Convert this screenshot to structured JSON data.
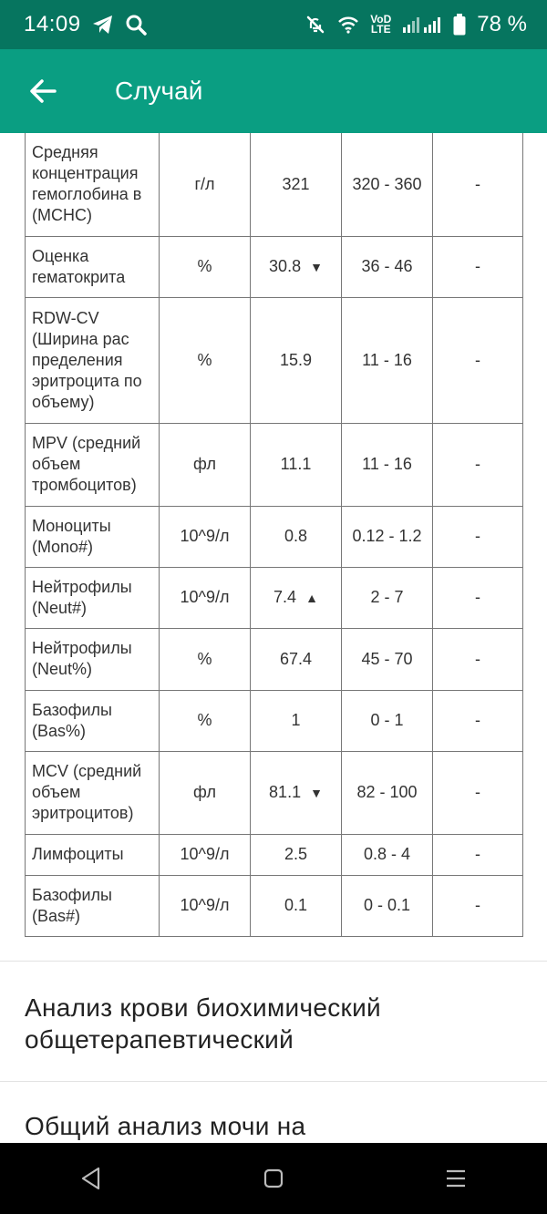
{
  "status_bar": {
    "time": "14:09",
    "network_top": "VoD",
    "network_bottom": "LTE",
    "battery": "78 %"
  },
  "app_bar": {
    "title": "Случай"
  },
  "table": {
    "rows": [
      {
        "name": "Средняя концентрация гемоглобина в (MCHC)",
        "unit": "г/л",
        "value": "321",
        "ref": "320 - 360",
        "note": "-",
        "flag": ""
      },
      {
        "name": "Оценка гематокрита",
        "unit": "%",
        "value": "30.8",
        "ref": "36 - 46",
        "note": "-",
        "flag": "▼"
      },
      {
        "name": "RDW-CV (Ширина рас пределения эритроцита по объему)",
        "unit": "%",
        "value": "15.9",
        "ref": "11 - 16",
        "note": "-",
        "flag": ""
      },
      {
        "name": "MPV (средний объем тромбоцитов)",
        "unit": "фл",
        "value": "11.1",
        "ref": "11 - 16",
        "note": "-",
        "flag": ""
      },
      {
        "name": "Моноциты (Mono#)",
        "unit": "10^9/л",
        "value": "0.8",
        "ref": "0.12 - 1.2",
        "note": "-",
        "flag": ""
      },
      {
        "name": "Нейтрофилы (Neut#)",
        "unit": "10^9/л",
        "value": "7.4",
        "ref": "2 - 7",
        "note": "-",
        "flag": "▲"
      },
      {
        "name": "Нейтрофилы (Neut%)",
        "unit": "%",
        "value": "67.4",
        "ref": "45 - 70",
        "note": "-",
        "flag": ""
      },
      {
        "name": "Базофилы (Bas%)",
        "unit": "%",
        "value": "1",
        "ref": "0 - 1",
        "note": "-",
        "flag": ""
      },
      {
        "name": "MCV (средний объем эритроцитов)",
        "unit": "фл",
        "value": "81.1",
        "ref": "82 - 100",
        "note": "-",
        "flag": "▼"
      },
      {
        "name": "Лимфоциты",
        "unit": "10^9/л",
        "value": "2.5",
        "ref": "0.8 - 4",
        "note": "-",
        "flag": ""
      },
      {
        "name": "Базофилы (Bas#)",
        "unit": "10^9/л",
        "value": "0.1",
        "ref": "0 - 0.1",
        "note": "-",
        "flag": ""
      }
    ]
  },
  "sections": [
    {
      "title": "Анализ крови биохимический общетерапевтический"
    },
    {
      "title": "Общий анализ мочи на"
    }
  ],
  "colors": {
    "status_bar": "#06755f",
    "app_bar": "#0a9e82",
    "abnormal": "#e4572e"
  },
  "icons": {
    "back": "arrow-left-icon",
    "telegram": "telegram-icon",
    "search": "search-icon",
    "mute": "vibrate-off-icon",
    "wifi": "wifi-icon",
    "signal": "signal-icon",
    "battery": "battery-icon",
    "nav_back": "triangle-back-icon",
    "nav_home": "square-home-icon",
    "nav_recents": "recents-icon"
  }
}
